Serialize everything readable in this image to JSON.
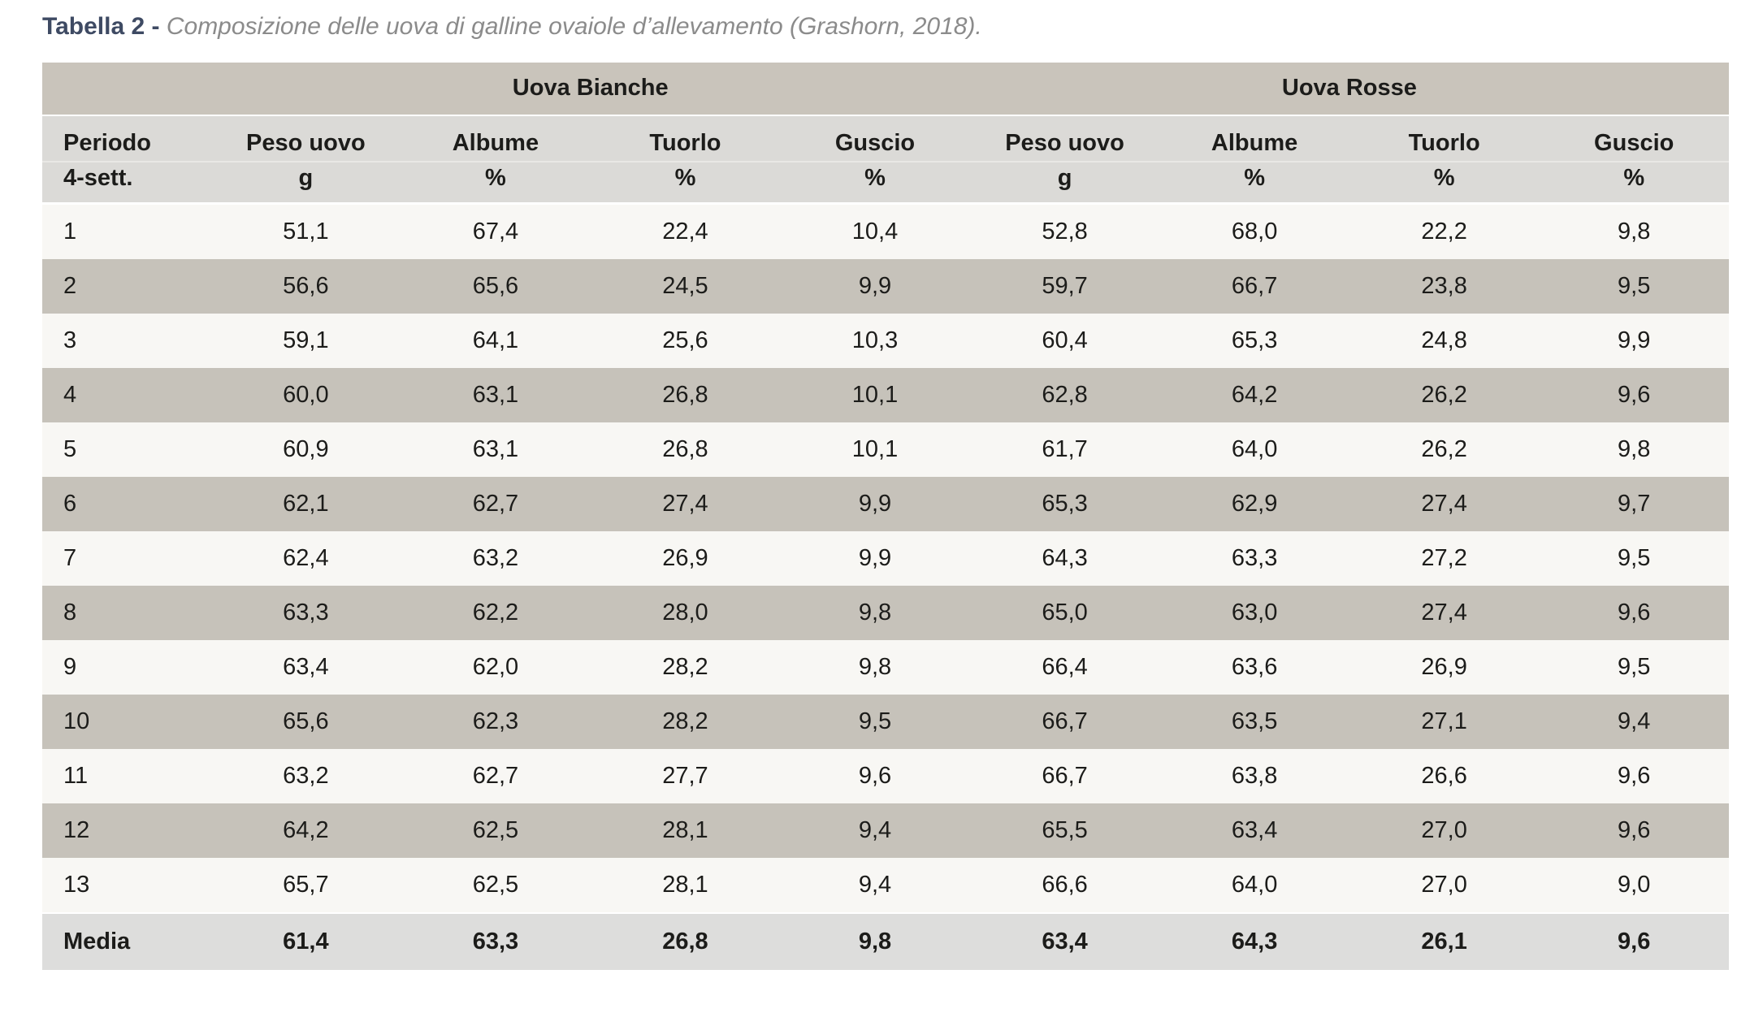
{
  "title": {
    "label": "Tabella 2 -",
    "caption": "Composizione delle uova di galline ovaiole d’allevamento (Grashorn, 2018)."
  },
  "table": {
    "groups": [
      {
        "label": "Uova Bianche"
      },
      {
        "label": "Uova Rosse"
      }
    ],
    "columns": [
      {
        "label": "Periodo",
        "unit": "4-sett."
      },
      {
        "label": "Peso uovo",
        "unit": "g"
      },
      {
        "label": "Albume",
        "unit": "%"
      },
      {
        "label": "Tuorlo",
        "unit": "%"
      },
      {
        "label": "Guscio",
        "unit": "%"
      },
      {
        "label": "Peso uovo",
        "unit": "g"
      },
      {
        "label": "Albume",
        "unit": "%"
      },
      {
        "label": "Tuorlo",
        "unit": "%"
      },
      {
        "label": "Guscio",
        "unit": "%"
      }
    ],
    "rows": [
      [
        "1",
        "51,1",
        "67,4",
        "22,4",
        "10,4",
        "52,8",
        "68,0",
        "22,2",
        "9,8"
      ],
      [
        "2",
        "56,6",
        "65,6",
        "24,5",
        "9,9",
        "59,7",
        "66,7",
        "23,8",
        "9,5"
      ],
      [
        "3",
        "59,1",
        "64,1",
        "25,6",
        "10,3",
        "60,4",
        "65,3",
        "24,8",
        "9,9"
      ],
      [
        "4",
        "60,0",
        "63,1",
        "26,8",
        "10,1",
        "62,8",
        "64,2",
        "26,2",
        "9,6"
      ],
      [
        "5",
        "60,9",
        "63,1",
        "26,8",
        "10,1",
        "61,7",
        "64,0",
        "26,2",
        "9,8"
      ],
      [
        "6",
        "62,1",
        "62,7",
        "27,4",
        "9,9",
        "65,3",
        "62,9",
        "27,4",
        "9,7"
      ],
      [
        "7",
        "62,4",
        "63,2",
        "26,9",
        "9,9",
        "64,3",
        "63,3",
        "27,2",
        "9,5"
      ],
      [
        "8",
        "63,3",
        "62,2",
        "28,0",
        "9,8",
        "65,0",
        "63,0",
        "27,4",
        "9,6"
      ],
      [
        "9",
        "63,4",
        "62,0",
        "28,2",
        "9,8",
        "66,4",
        "63,6",
        "26,9",
        "9,5"
      ],
      [
        "10",
        "65,6",
        "62,3",
        "28,2",
        "9,5",
        "66,7",
        "63,5",
        "27,1",
        "9,4"
      ],
      [
        "11",
        "63,2",
        "62,7",
        "27,7",
        "9,6",
        "66,7",
        "63,8",
        "26,6",
        "9,6"
      ],
      [
        "12",
        "64,2",
        "62,5",
        "28,1",
        "9,4",
        "65,5",
        "63,4",
        "27,0",
        "9,6"
      ],
      [
        "13",
        "65,7",
        "62,5",
        "28,1",
        "9,4",
        "66,6",
        "64,0",
        "27,0",
        "9,0"
      ]
    ],
    "summary_row": [
      "Media",
      "61,4",
      "63,3",
      "26,8",
      "9,8",
      "63,4",
      "64,3",
      "26,1",
      "9,6"
    ]
  },
  "colors": {
    "group_header_bg": "#c9c4bb",
    "column_header_bg": "#dbdad7",
    "row_odd_bg": "#f8f7f4",
    "row_even_bg": "#c6c2ba",
    "summary_bg": "#dddddc",
    "title_label_color": "#3e4a63",
    "title_caption_color": "#8b8b8b",
    "text_color": "#1c1c1a"
  }
}
